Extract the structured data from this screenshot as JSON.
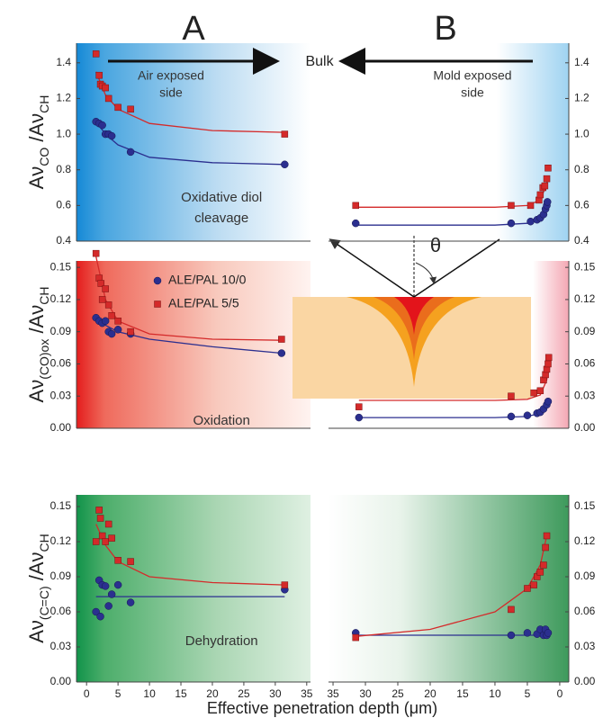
{
  "column_labels": [
    "A",
    "B"
  ],
  "bulk_label": "Bulk",
  "air_label": [
    "Air exposed",
    "side"
  ],
  "mold_label": [
    "Mold exposed",
    "side"
  ],
  "theta": "θ",
  "xlabel": "Effective penetration depth (μm)",
  "chart_data": [
    {
      "type": "scatter",
      "xlim": [
        -1.6,
        35.6
      ],
      "ylim": [
        0.4,
        1.51
      ],
      "yticks": [
        0.4,
        0.6,
        0.8,
        {
          "value": 1,
          "label": "1.0"
        },
        1.2,
        1.4
      ],
      "ylabel": [
        "Aν",
        "CO",
        " /Aν",
        "CH"
      ],
      "note": [
        "Oxidative diol",
        "cleavage"
      ],
      "series": [
        {
          "color": "#2b2f8f",
          "marker": "circle",
          "x": [
            1.5,
            2,
            2.5,
            3,
            3.5,
            4,
            7,
            31.5
          ],
          "values": [
            1.07,
            1.06,
            1.05,
            1.0,
            1.0,
            0.99,
            0.9,
            0.83
          ],
          "fit_x": [
            1.5,
            3,
            5,
            10,
            20,
            31.5
          ],
          "fit_values": [
            1.07,
            1.0,
            0.94,
            0.87,
            0.84,
            0.83
          ]
        },
        {
          "color": "#d42a2a",
          "marker": "square",
          "x": [
            1.5,
            2,
            2.2,
            2.5,
            3,
            3.5,
            5,
            7,
            31.5
          ],
          "values": [
            1.45,
            1.33,
            1.28,
            1.27,
            1.26,
            1.2,
            1.15,
            1.14,
            1.0
          ],
          "fit_x": [
            1.5,
            3,
            5,
            10,
            20,
            31.5
          ],
          "fit_values": [
            1.35,
            1.22,
            1.14,
            1.06,
            1.02,
            1.01
          ]
        }
      ]
    },
    {
      "type": "scatter",
      "xlim": [
        35.7,
        -1.4
      ],
      "ylim": [
        0.4,
        1.51
      ],
      "yticks": [
        0.4,
        0.6,
        0.8,
        {
          "value": 1,
          "label": "1.0"
        },
        1.2,
        1.4
      ],
      "series": [
        {
          "color": "#2b2f8f",
          "marker": "circle",
          "x": [
            31.5,
            7.5,
            4.5,
            3.5,
            3,
            2.5,
            2.2,
            2,
            1.9
          ],
          "values": [
            0.5,
            0.5,
            0.51,
            0.52,
            0.53,
            0.55,
            0.58,
            0.6,
            0.62
          ],
          "fit_x": [
            31.5,
            10,
            5,
            3,
            2,
            1.8
          ],
          "fit_values": [
            0.49,
            0.49,
            0.5,
            0.52,
            0.57,
            0.6
          ]
        },
        {
          "color": "#d42a2a",
          "marker": "square",
          "x": [
            31.5,
            7.5,
            4.5,
            3.2,
            3,
            2.6,
            2.3,
            2,
            1.8
          ],
          "values": [
            0.6,
            0.6,
            0.6,
            0.63,
            0.66,
            0.7,
            0.71,
            0.75,
            0.81
          ],
          "fit_x": [
            31.5,
            10,
            5,
            3,
            2,
            1.8
          ],
          "fit_values": [
            0.59,
            0.59,
            0.6,
            0.63,
            0.72,
            0.76
          ]
        }
      ]
    },
    {
      "type": "scatter",
      "xlim": [
        -1.6,
        35.6
      ],
      "ylim": [
        0,
        0.156
      ],
      "yticks": [
        {
          "value": 0,
          "label": "0.00"
        },
        {
          "value": 0.03,
          "label": "0.03"
        },
        {
          "value": 0.06,
          "label": "0.06"
        },
        {
          "value": 0.09,
          "label": "0.09"
        },
        {
          "value": 0.12,
          "label": "0.12"
        },
        {
          "value": 0.15,
          "label": "0.15"
        }
      ],
      "ylabel": [
        "Aν",
        "(CO)ox",
        " /Aν",
        "CH"
      ],
      "note": [
        "Oxidation"
      ],
      "legend": true,
      "series": [
        {
          "name": "ALE/PAL 10/0",
          "color": "#2b2f8f",
          "marker": "circle",
          "x": [
            1.5,
            2,
            2.5,
            3,
            3.5,
            4,
            5,
            7,
            31
          ],
          "values": [
            0.103,
            0.1,
            0.098,
            0.1,
            0.09,
            0.088,
            0.092,
            0.088,
            0.07
          ],
          "fit_x": [
            1.5,
            3,
            5,
            10,
            20,
            31
          ],
          "fit_values": [
            0.103,
            0.096,
            0.09,
            0.083,
            0.076,
            0.07
          ]
        },
        {
          "name": "ALE/PAL 5/5",
          "color": "#d42a2a",
          "marker": "square",
          "x": [
            1.5,
            2,
            2.3,
            2.5,
            3,
            3.5,
            4,
            5,
            7,
            31
          ],
          "values": [
            0.163,
            0.14,
            0.135,
            0.12,
            0.13,
            0.115,
            0.105,
            0.1,
            0.09,
            0.083
          ],
          "fit_x": [
            1.5,
            3,
            5,
            10,
            20,
            31
          ],
          "fit_values": [
            0.16,
            0.12,
            0.1,
            0.088,
            0.083,
            0.082
          ]
        }
      ]
    },
    {
      "type": "scatter",
      "xlim": [
        35.7,
        -1.4
      ],
      "ylim": [
        0,
        0.156
      ],
      "yticks": [
        {
          "value": 0,
          "label": "0.00"
        },
        {
          "value": 0.03,
          "label": "0.03"
        },
        {
          "value": 0.06,
          "label": "0.06"
        },
        {
          "value": 0.09,
          "label": "0.09"
        },
        {
          "value": 0.12,
          "label": "0.12"
        },
        {
          "value": 0.15,
          "label": "0.15"
        }
      ],
      "series": [
        {
          "color": "#2b2f8f",
          "marker": "circle",
          "x": [
            31,
            7.5,
            5,
            3.5,
            3,
            2.5,
            2,
            1.8
          ],
          "values": [
            0.01,
            0.011,
            0.012,
            0.014,
            0.015,
            0.018,
            0.022,
            0.025
          ],
          "fit_x": [
            31,
            10,
            5,
            3,
            2,
            1.8
          ],
          "fit_values": [
            0.01,
            0.01,
            0.011,
            0.014,
            0.02,
            0.024
          ]
        },
        {
          "color": "#d42a2a",
          "marker": "square",
          "x": [
            31,
            7.5,
            4,
            3,
            2.5,
            2.2,
            2,
            1.8,
            1.7
          ],
          "values": [
            0.02,
            0.03,
            0.033,
            0.035,
            0.045,
            0.05,
            0.055,
            0.06,
            0.066
          ],
          "fit_x": [
            31,
            10,
            5,
            3,
            2,
            1.8
          ],
          "fit_values": [
            0.026,
            0.026,
            0.027,
            0.031,
            0.045,
            0.055
          ]
        }
      ]
    },
    {
      "type": "scatter",
      "xlim": [
        -1.6,
        35.6
      ],
      "ylim": [
        0,
        0.16
      ],
      "xticks": [
        0,
        5,
        10,
        15,
        20,
        25,
        30,
        35
      ],
      "yticks": [
        {
          "value": 0,
          "label": "0.00"
        },
        {
          "value": 0.03,
          "label": "0.03"
        },
        {
          "value": 0.06,
          "label": "0.06"
        },
        {
          "value": 0.09,
          "label": "0.09"
        },
        {
          "value": 0.12,
          "label": "0.12"
        },
        {
          "value": 0.15,
          "label": "0.15"
        }
      ],
      "ylabel": [
        "Aν",
        "(C=C)",
        " /Aν",
        "CH"
      ],
      "note": [
        "Dehydration"
      ],
      "series": [
        {
          "color": "#2b2f8f",
          "marker": "circle",
          "x": [
            1.5,
            2,
            2.2,
            2.5,
            3,
            3.5,
            4,
            5,
            7,
            31.5
          ],
          "values": [
            0.06,
            0.087,
            0.056,
            0.083,
            0.082,
            0.065,
            0.075,
            0.083,
            0.068,
            0.079
          ],
          "fit_x": [
            1.5,
            31.5
          ],
          "fit_values": [
            0.073,
            0.073
          ]
        },
        {
          "color": "#d42a2a",
          "marker": "square",
          "x": [
            1.5,
            2,
            2.2,
            2.5,
            3,
            3.5,
            4,
            5,
            7,
            31.5
          ],
          "values": [
            0.12,
            0.147,
            0.14,
            0.125,
            0.12,
            0.135,
            0.123,
            0.104,
            0.103,
            0.083
          ],
          "fit_x": [
            1.5,
            3,
            5,
            10,
            20,
            31.5
          ],
          "fit_values": [
            0.135,
            0.117,
            0.103,
            0.09,
            0.085,
            0.083
          ]
        }
      ]
    },
    {
      "type": "scatter",
      "xlim": [
        35.7,
        -1.4
      ],
      "ylim": [
        0,
        0.16
      ],
      "xticks": [
        35,
        30,
        25,
        20,
        15,
        10,
        5,
        0
      ],
      "yticks": [
        {
          "value": 0,
          "label": "0.00"
        },
        {
          "value": 0.03,
          "label": "0.03"
        },
        {
          "value": 0.06,
          "label": "0.06"
        },
        {
          "value": 0.09,
          "label": "0.09"
        },
        {
          "value": 0.12,
          "label": "0.12"
        },
        {
          "value": 0.15,
          "label": "0.15"
        }
      ],
      "series": [
        {
          "color": "#2b2f8f",
          "marker": "circle",
          "x": [
            31.5,
            7.5,
            5,
            3.5,
            3,
            2.5,
            2.2,
            2,
            1.8
          ],
          "values": [
            0.042,
            0.04,
            0.042,
            0.041,
            0.045,
            0.04,
            0.045,
            0.04,
            0.042
          ],
          "fit_x": [
            31.5,
            1.8
          ],
          "fit_values": [
            0.04,
            0.04
          ]
        },
        {
          "color": "#d42a2a",
          "marker": "square",
          "x": [
            31.5,
            7.5,
            5,
            4,
            3.5,
            3,
            2.5,
            2.2,
            2
          ],
          "values": [
            0.038,
            0.062,
            0.08,
            0.083,
            0.09,
            0.094,
            0.1,
            0.115,
            0.125
          ],
          "fit_x": [
            31.5,
            20,
            10,
            5,
            3,
            2
          ],
          "fit_values": [
            0.039,
            0.045,
            0.06,
            0.08,
            0.1,
            0.125
          ]
        }
      ]
    }
  ]
}
